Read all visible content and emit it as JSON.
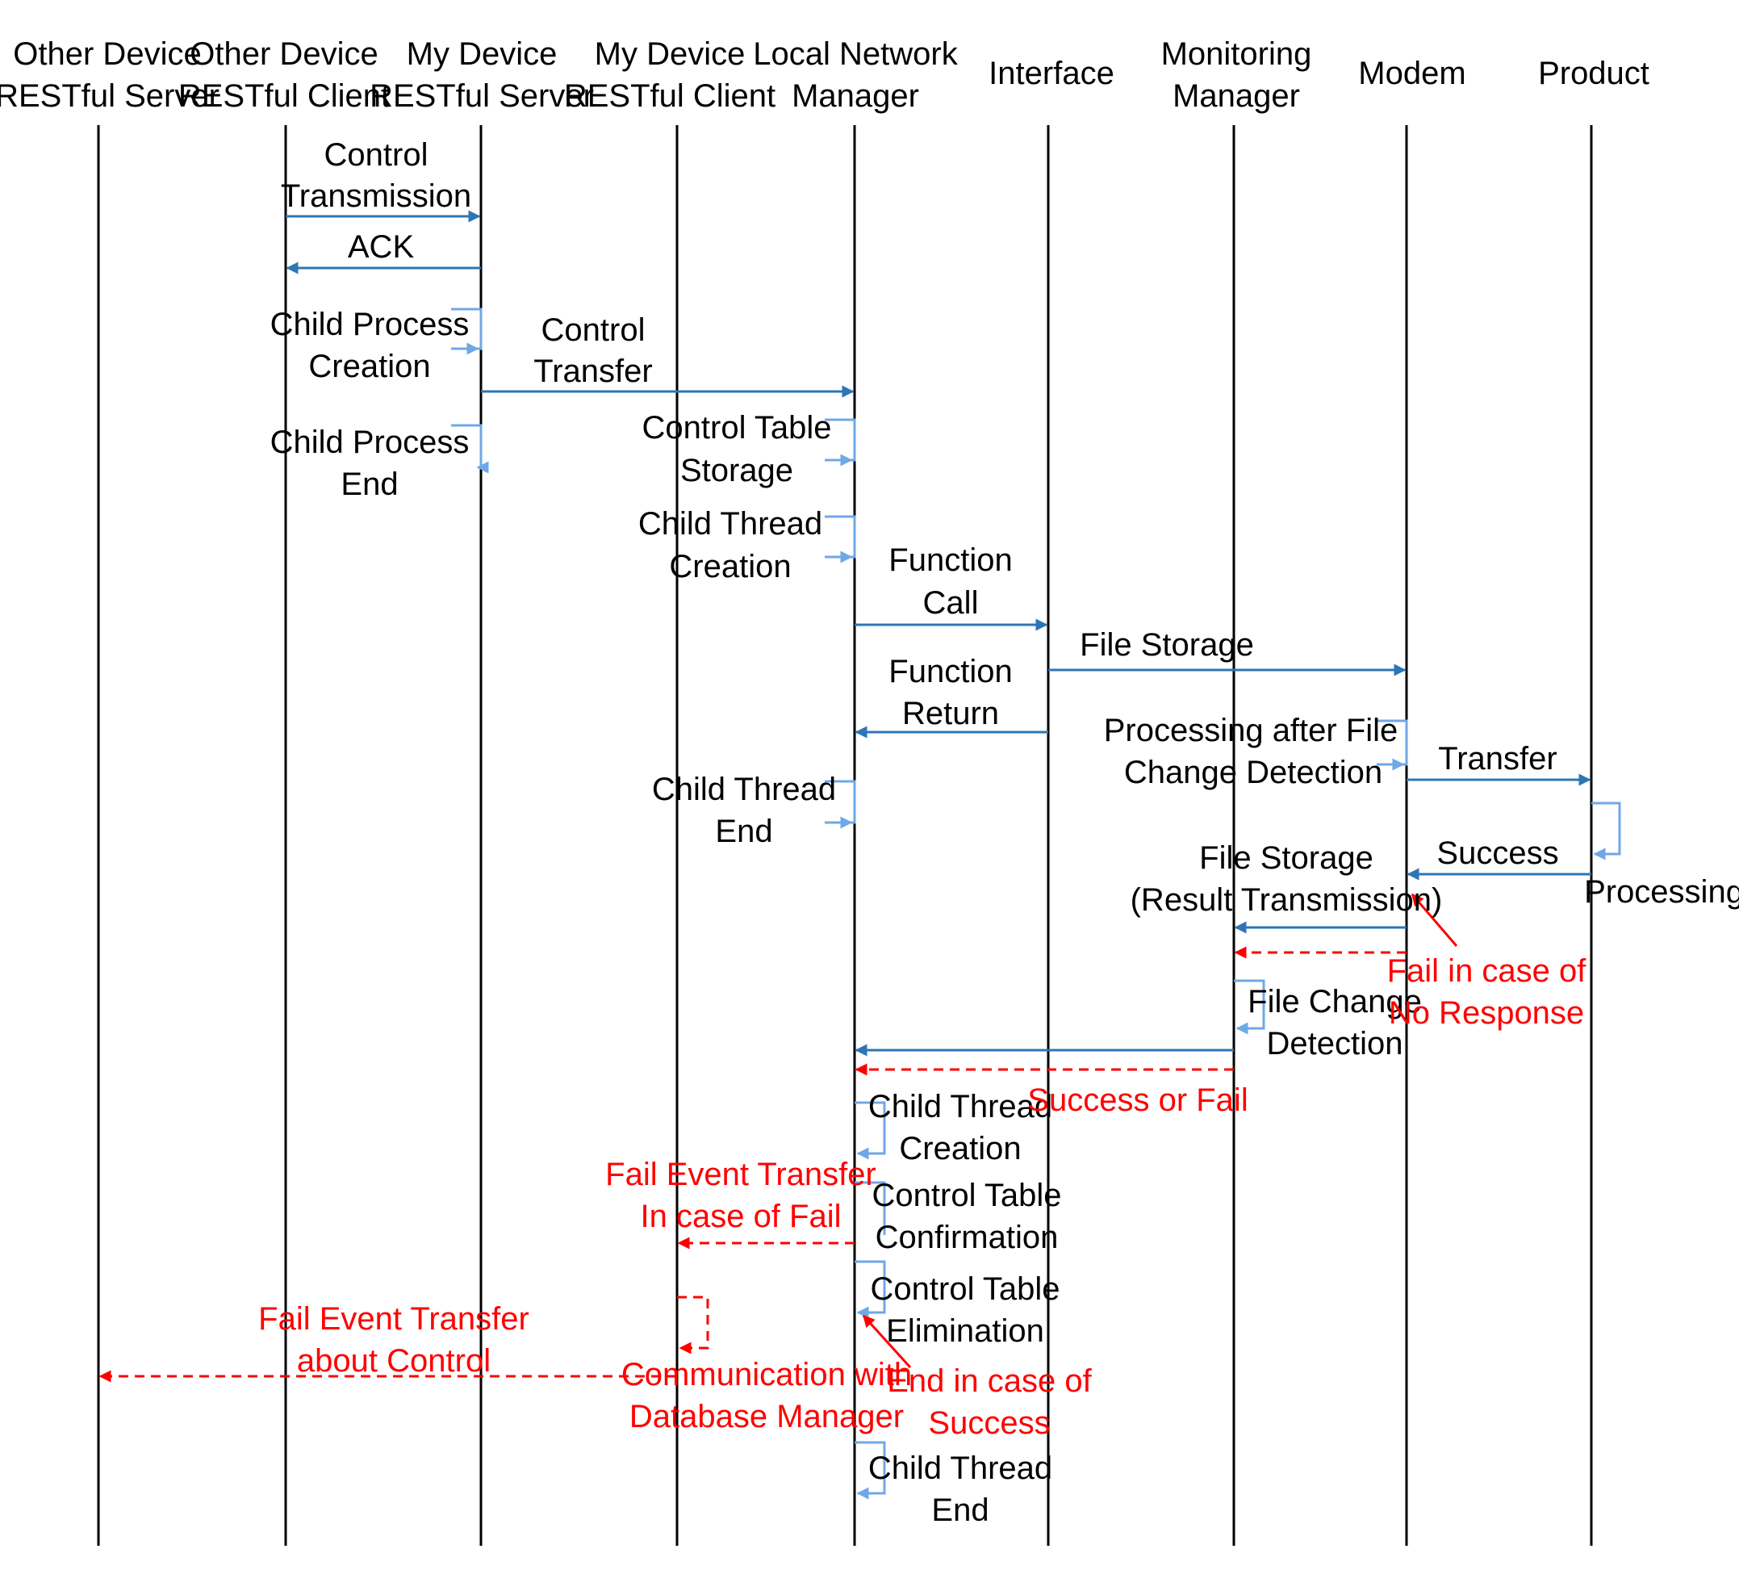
{
  "colors": {
    "lifeline": "#000000",
    "message": "#2e75b6",
    "self_loop": "#6fa8e6",
    "fail": "#ff0000",
    "label": "#000000",
    "fail_label": "#ff0000"
  },
  "participants": [
    {
      "line1": "Other Device",
      "line2": "RESTful Server"
    },
    {
      "line1": "Other Device",
      "line2": "RESTful Client"
    },
    {
      "line1": "My Device",
      "line2": "RESTful Server"
    },
    {
      "line1": "My Device",
      "line2": "RESTful Client"
    },
    {
      "line1": "Local  Network",
      "line2": "Manager"
    },
    {
      "line1": "Interface",
      "line2": ""
    },
    {
      "line1": "Monitoring",
      "line2": "Manager"
    },
    {
      "line1": "Modem",
      "line2": ""
    },
    {
      "line1": "Product",
      "line2": ""
    }
  ],
  "messages": {
    "control_transmission": [
      "Control",
      "Transmission"
    ],
    "ack": [
      "ACK"
    ],
    "child_process_creation": [
      "Child Process",
      "Creation"
    ],
    "control_transfer": [
      "Control",
      "Transfer"
    ],
    "child_process_end": [
      "Child Process",
      "End"
    ],
    "control_table_storage": [
      "Control Table",
      "Storage"
    ],
    "child_thread_creation_1": [
      "Child Thread",
      "Creation"
    ],
    "function_call": [
      "Function",
      "Call"
    ],
    "file_storage": [
      "File Storage"
    ],
    "function_return": [
      "Function",
      "Return"
    ],
    "processing_after_file_change": [
      "Processing after File",
      "Change Detection"
    ],
    "transfer": [
      "Transfer"
    ],
    "child_thread_end_1": [
      "Child Thread",
      "End"
    ],
    "processing": [
      "Processing"
    ],
    "success": [
      "Success"
    ],
    "file_storage_result": [
      "File Storage",
      "(Result Transmission)"
    ],
    "fail_no_response": [
      "Fail in case of",
      "No Response"
    ],
    "file_change_detection": [
      "File Change",
      "Detection"
    ],
    "success_or_fail": [
      "Success or Fail"
    ],
    "child_thread_creation_2": [
      "Child Thread",
      "Creation"
    ],
    "fail_event_transfer": [
      "Fail Event Transfer",
      "In case of Fail"
    ],
    "control_table_confirmation": [
      "Control Table",
      "Confirmation"
    ],
    "control_table_elimination": [
      "Control Table",
      "Elimination"
    ],
    "fail_event_about_control": [
      "Fail Event Transfer",
      "about Control"
    ],
    "communication_db": [
      "Communication with",
      "Database Manager"
    ],
    "end_in_case_of_success": [
      "End in case of",
      "Success"
    ],
    "child_thread_end_2": [
      "Child Thread",
      "End"
    ]
  }
}
